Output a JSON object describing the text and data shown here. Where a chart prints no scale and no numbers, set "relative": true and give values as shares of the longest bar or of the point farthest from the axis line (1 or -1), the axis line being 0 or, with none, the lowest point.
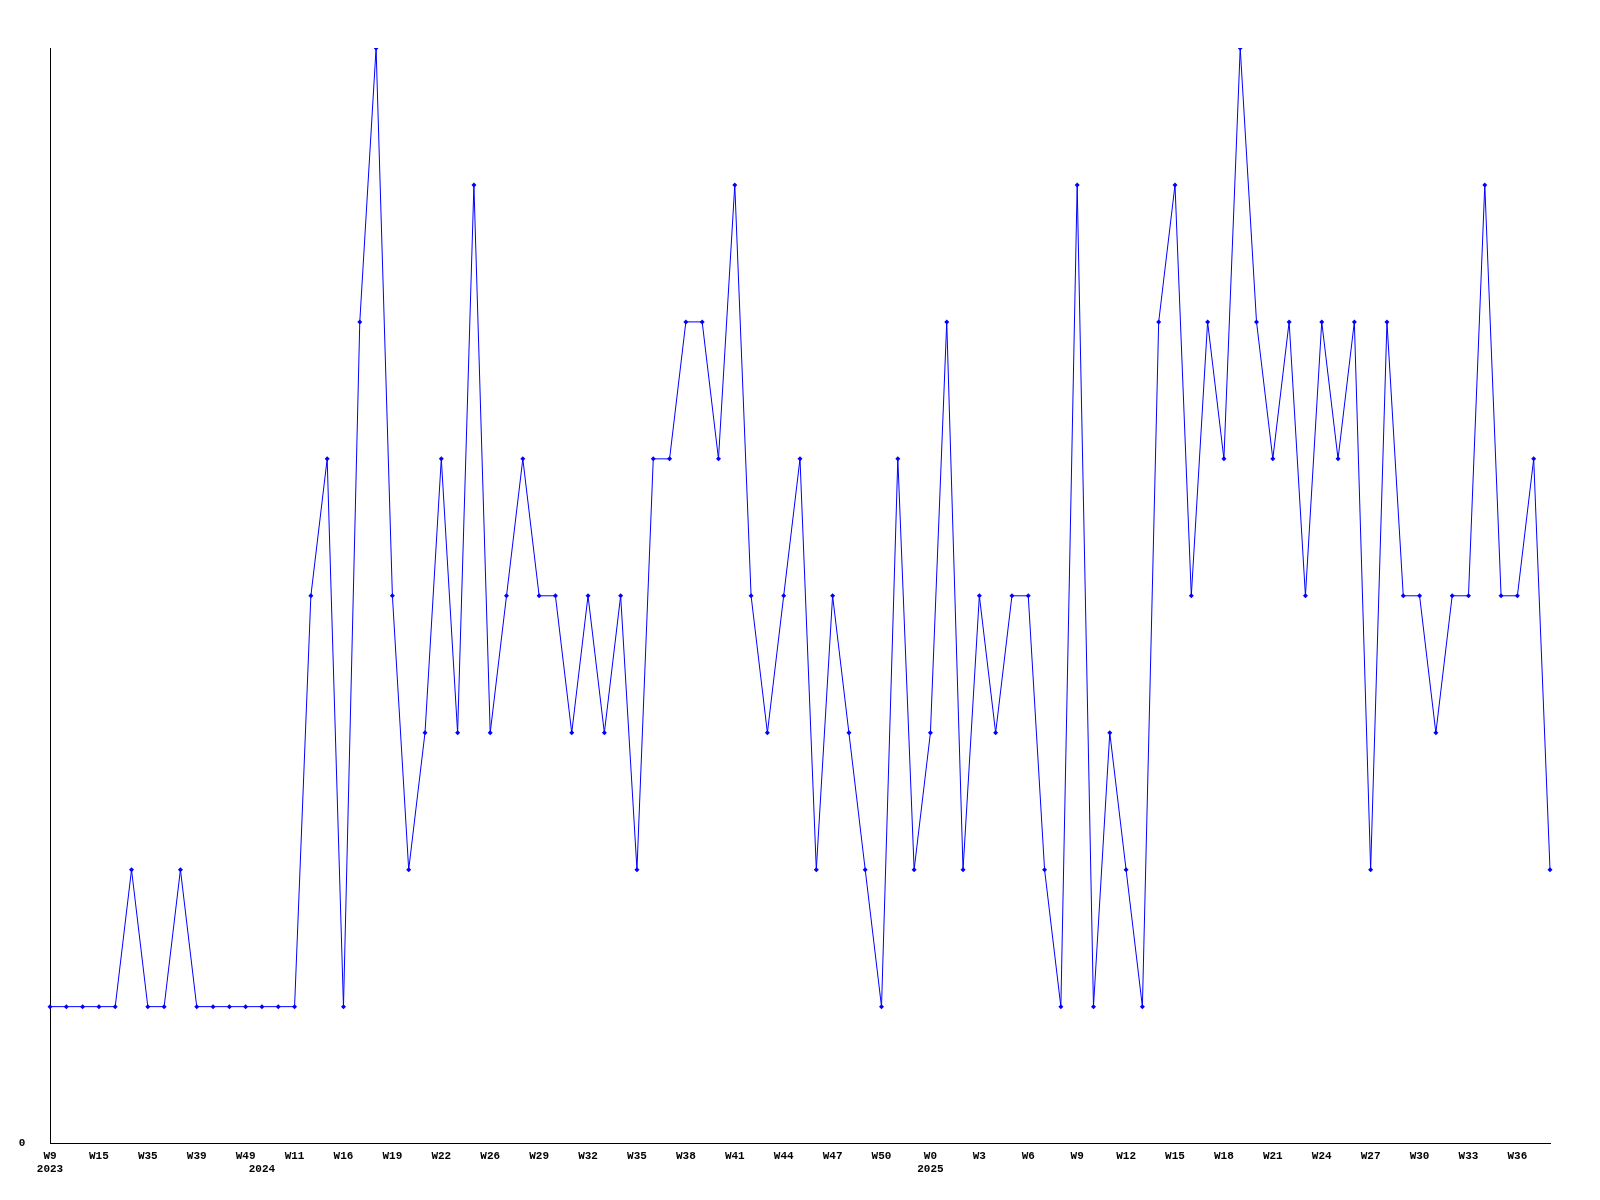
{
  "chart_data": {
    "type": "line",
    "relative": true,
    "categories": [
      "W9\n2023",
      null,
      null,
      "W15",
      null,
      null,
      "W35",
      null,
      null,
      "W39",
      null,
      null,
      "W49",
      "\n2024",
      null,
      "W11",
      null,
      null,
      "W16",
      null,
      null,
      "W19",
      null,
      null,
      "W22",
      null,
      null,
      "W26",
      null,
      null,
      "W29",
      null,
      null,
      "W32",
      null,
      null,
      "W35",
      null,
      null,
      "W38",
      null,
      null,
      "W41",
      null,
      null,
      "W44",
      null,
      null,
      "W47",
      null,
      null,
      "W50",
      null,
      null,
      "W0\n2025",
      null,
      null,
      "W3",
      null,
      null,
      "W6",
      null,
      null,
      "W9",
      null,
      null,
      "W12",
      null,
      null,
      "W15",
      null,
      null,
      "W18",
      null,
      null,
      "W21",
      null,
      null,
      "W24",
      null,
      null,
      "W27",
      null,
      null,
      "W30",
      null,
      null,
      "W33",
      null,
      null,
      "W36",
      null,
      null
    ],
    "series": [
      {
        "color": "#0000ff",
        "values": [
          0.125,
          0.125,
          0.125,
          0.125,
          0.125,
          0.25,
          0.125,
          0.125,
          0.25,
          0.125,
          0.125,
          0.125,
          0.125,
          0.125,
          0.125,
          0.125,
          0.5,
          0.625,
          0.125,
          0.75,
          1,
          0.5,
          0.25,
          0.375,
          0.625,
          0.375,
          0.875,
          0.375,
          0.5,
          0.625,
          0.5,
          0.5,
          0.375,
          0.5,
          0.375,
          0.5,
          0.25,
          0.625,
          0.625,
          0.75,
          0.75,
          0.625,
          0.875,
          0.5,
          0.375,
          0.5,
          0.625,
          0.25,
          0.5,
          0.375,
          0.25,
          0.125,
          0.625,
          0.25,
          0.375,
          0.75,
          0.25,
          0.5,
          0.375,
          0.5,
          0.5,
          0.25,
          0.125,
          0.875,
          0.125,
          0.375,
          0.25,
          0.125,
          0.75,
          0.875,
          0.5,
          0.75,
          0.625,
          1,
          0.75,
          0.625,
          0.75,
          0.5,
          0.75,
          0.625,
          0.75,
          0.25,
          0.75,
          0.5,
          0.5,
          0.375,
          0.5,
          0.5,
          0.875,
          0.5,
          0.5,
          0.625,
          0.25
        ]
      }
    ],
    "annotations": [
      "0"
    ],
    "marker": "diamond",
    "line_style": "solid",
    "grid": false,
    "legend": false
  }
}
